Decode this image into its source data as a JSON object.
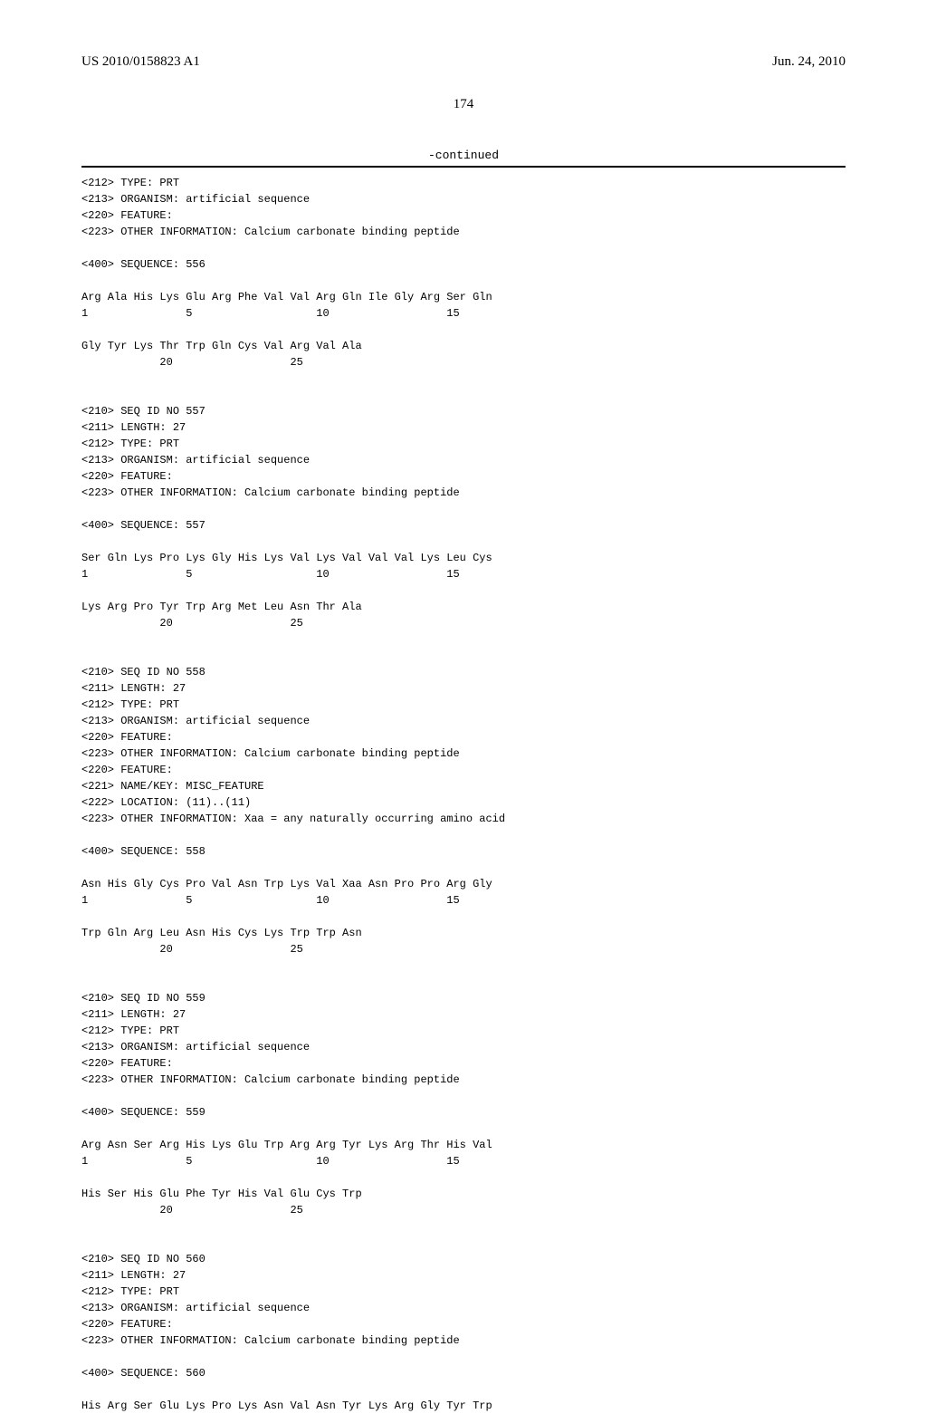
{
  "header": {
    "publication_number": "US 2010/0158823 A1",
    "publication_date": "Jun. 24, 2010"
  },
  "page_number": "174",
  "continued_label": "-continued",
  "blocks": [
    {
      "meta": "<212> TYPE: PRT\n<213> ORGANISM: artificial sequence\n<220> FEATURE:\n<223> OTHER INFORMATION: Calcium carbonate binding peptide\n\n<400> SEQUENCE: 556",
      "seq1": "Arg Ala His Lys Glu Arg Phe Val Val Arg Gln Ile Gly Arg Ser Gln",
      "num1": "1               5                   10                  15",
      "seq2": "Gly Tyr Lys Thr Trp Gln Cys Val Arg Val Ala",
      "num2": "            20                  25"
    },
    {
      "meta": "<210> SEQ ID NO 557\n<211> LENGTH: 27\n<212> TYPE: PRT\n<213> ORGANISM: artificial sequence\n<220> FEATURE:\n<223> OTHER INFORMATION: Calcium carbonate binding peptide\n\n<400> SEQUENCE: 557",
      "seq1": "Ser Gln Lys Pro Lys Gly His Lys Val Lys Val Val Val Lys Leu Cys",
      "num1": "1               5                   10                  15",
      "seq2": "Lys Arg Pro Tyr Trp Arg Met Leu Asn Thr Ala",
      "num2": "            20                  25"
    },
    {
      "meta": "<210> SEQ ID NO 558\n<211> LENGTH: 27\n<212> TYPE: PRT\n<213> ORGANISM: artificial sequence\n<220> FEATURE:\n<223> OTHER INFORMATION: Calcium carbonate binding peptide\n<220> FEATURE:\n<221> NAME/KEY: MISC_FEATURE\n<222> LOCATION: (11)..(11)\n<223> OTHER INFORMATION: Xaa = any naturally occurring amino acid\n\n<400> SEQUENCE: 558",
      "seq1": "Asn His Gly Cys Pro Val Asn Trp Lys Val Xaa Asn Pro Pro Arg Gly",
      "num1": "1               5                   10                  15",
      "seq2": "Trp Gln Arg Leu Asn His Cys Lys Trp Trp Asn",
      "num2": "            20                  25"
    },
    {
      "meta": "<210> SEQ ID NO 559\n<211> LENGTH: 27\n<212> TYPE: PRT\n<213> ORGANISM: artificial sequence\n<220> FEATURE:\n<223> OTHER INFORMATION: Calcium carbonate binding peptide\n\n<400> SEQUENCE: 559",
      "seq1": "Arg Asn Ser Arg His Lys Glu Trp Arg Arg Tyr Lys Arg Thr His Val",
      "num1": "1               5                   10                  15",
      "seq2": "His Ser His Glu Phe Tyr His Val Glu Cys Trp",
      "num2": "            20                  25"
    },
    {
      "meta": "<210> SEQ ID NO 560\n<211> LENGTH: 27\n<212> TYPE: PRT\n<213> ORGANISM: artificial sequence\n<220> FEATURE:\n<223> OTHER INFORMATION: Calcium carbonate binding peptide\n\n<400> SEQUENCE: 560",
      "seq1": "His Arg Ser Glu Lys Pro Lys Asn Val Asn Tyr Lys Arg Gly Tyr Trp",
      "num1": "",
      "seq2": "",
      "num2": ""
    }
  ]
}
